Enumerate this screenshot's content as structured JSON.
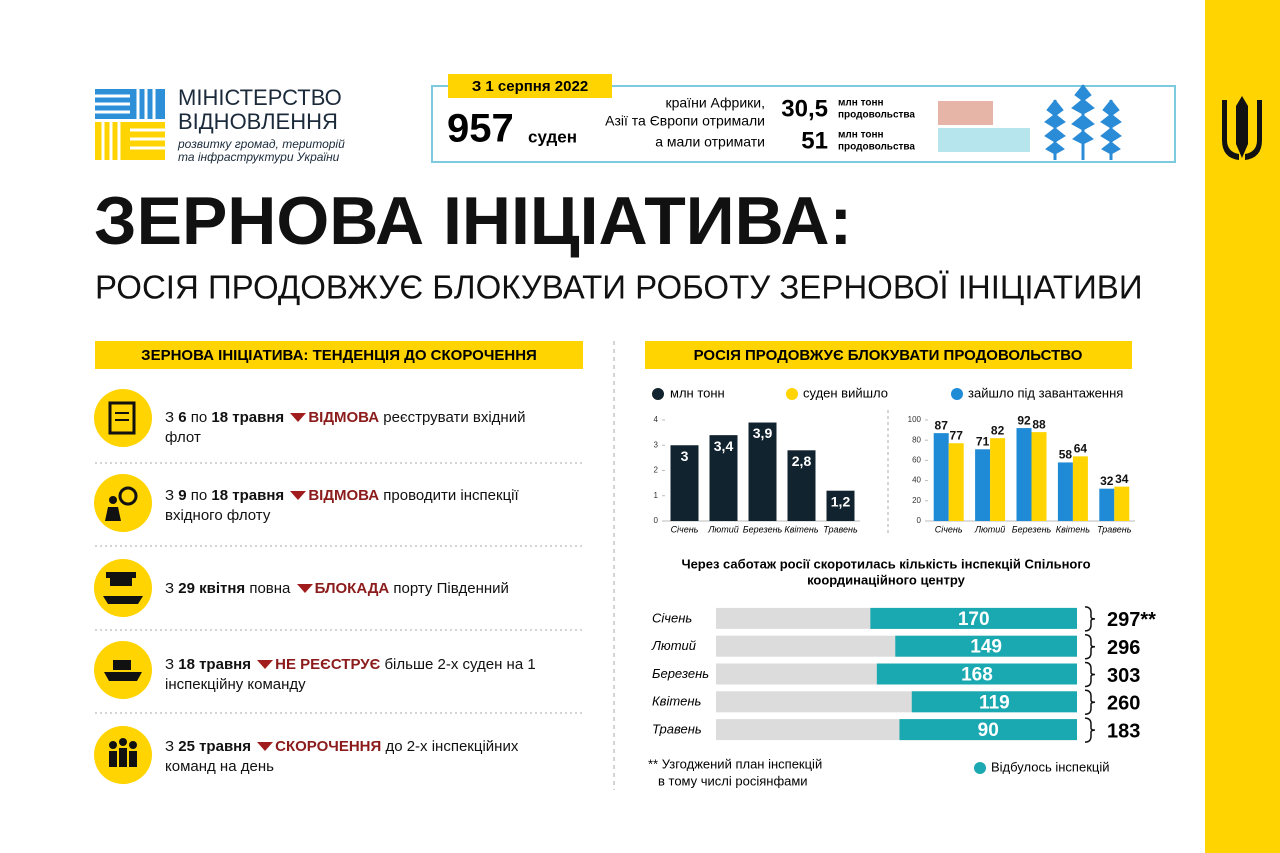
{
  "logo": {
    "lines": [
      "МІНІСТЕРСТВО",
      "ВІДНОВЛЕННЯ"
    ],
    "subtitle": [
      "розвитку громад, територій",
      "та інфраструктури України"
    ]
  },
  "top_box": {
    "date": "З 1 серпня 2022",
    "ships": 957,
    "ships_unit": "суден",
    "text_lines": [
      "країни Африки,",
      "Азії та Європи отримали",
      "а мали отримати"
    ],
    "values": [
      30.5,
      51
    ],
    "value_labels": [
      "30,5",
      "51"
    ],
    "units": [
      [
        "млн тонн",
        "продовольства"
      ],
      [
        "млн тонн",
        "продовольства"
      ]
    ],
    "colors": [
      "#e6b5a7",
      "#b7e5ee"
    ]
  },
  "title": "ЗЕРНОВА ІНІЦІАТИВА:",
  "subtitle": "РОСІЯ ПРОДОВЖУЄ БЛОКУВАТИ РОБОТУ ЗЕРНОВОЇ ІНІЦІАТИВИ",
  "left_section": {
    "heading": "ЗЕРНОВА ІНІЦІАТИВА: ТЕНДЕНЦІЯ ДО СКОРОЧЕННЯ",
    "items": [
      {
        "parts": [
          "З",
          "6",
          "по",
          "18 травня",
          "ВІДМОВА",
          "реєструвати вхідний флот"
        ]
      },
      {
        "parts": [
          "З",
          "9",
          "по",
          "18 травня",
          "ВІДМОВА",
          "проводити інспекції вхідного флоту"
        ]
      },
      {
        "parts": [
          "З",
          "29 квітня",
          "повна",
          "БЛОКАДА",
          "порту Південний"
        ]
      },
      {
        "parts": [
          "З",
          "18 травня",
          "НЕ РЕЄСТРУЄ",
          "більше 2-х суден на 1 інспекційну команду"
        ]
      },
      {
        "parts": [
          "З",
          "25 травня",
          "СКОРОЧЕННЯ",
          "до 2-х інспекційних команд на день"
        ]
      }
    ]
  },
  "right_section": {
    "heading": "РОСІЯ ПРОДОВЖУЄ БЛОКУВАТИ ПРОДОВОЛЬСТВО"
  },
  "chart_data": [
    {
      "type": "bar",
      "orientation": "vertical",
      "categories": [
        "Січень",
        "Лютий",
        "Березень",
        "Квітень",
        "Травень"
      ],
      "series": [
        {
          "name": "млн тонн",
          "color": "#10232e",
          "values": [
            3,
            3.4,
            3.9,
            2.8,
            1.2
          ],
          "value_labels": [
            "3",
            "3,4",
            "3,9",
            "2,8",
            "1,2"
          ]
        }
      ],
      "ylim": [
        0,
        4
      ],
      "yticks": [
        0,
        1,
        2,
        3,
        4
      ]
    },
    {
      "type": "bar",
      "orientation": "vertical",
      "categories": [
        "Січень",
        "Лютий",
        "Березень",
        "Квітень",
        "Травень"
      ],
      "series": [
        {
          "name": "зайшло під завантаження",
          "color": "#1f8bd6",
          "values": [
            87,
            71,
            92,
            58,
            32
          ]
        },
        {
          "name": "суден вийшло",
          "color": "#ffd400",
          "values": [
            77,
            82,
            88,
            64,
            34
          ]
        }
      ],
      "ylim": [
        0,
        100
      ],
      "yticks": [
        0,
        20,
        40,
        60,
        80,
        100
      ]
    },
    {
      "type": "bar",
      "orientation": "horizontal",
      "title": [
        "Через саботаж росії скоротилась кількість інспекцій Спільного",
        "координаційного центру"
      ],
      "categories": [
        "Січень",
        "Лютий",
        "Березень",
        "Квітень",
        "Травень"
      ],
      "series": [
        {
          "name": "Відбулось інспекцій",
          "color": "#1aa9b1",
          "values": [
            170,
            149,
            168,
            119,
            90
          ]
        }
      ],
      "totals": [
        297,
        296,
        303,
        260,
        183
      ],
      "totals_labels": [
        "297**",
        "296",
        "303",
        "260",
        "183"
      ],
      "totals_color": "#dcdcdc",
      "footnote": [
        "** Узгоджений план інспекцій",
        "в тому числі росіянфами"
      ]
    }
  ]
}
